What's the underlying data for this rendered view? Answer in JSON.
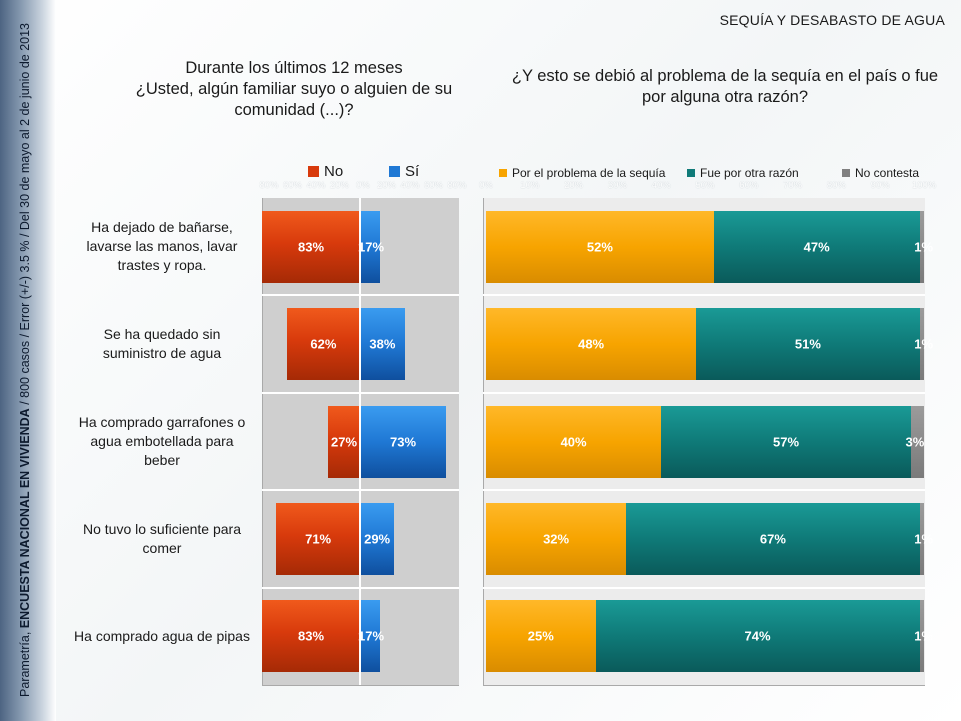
{
  "sidebar": {
    "prefix": "Parametría, ",
    "survey": "ENCUESTA NACIONAL EN VIVIENDA",
    "details": " / 800 casos / Error (+/-) 3.5 % / Del 30 de mayo al 2  de junio de 2013"
  },
  "header": {
    "section": "SEQUÍA Y DESABASTO DE AGUA"
  },
  "questions": {
    "left": [
      "Durante los últimos 12 meses",
      "¿Usted, algún familiar suyo o alguien de su",
      "comunidad (...)?"
    ],
    "right": [
      "¿Y esto se debió al problema de la sequía en el país o fue",
      "por alguna otra razón?"
    ]
  },
  "chart_data": [
    {
      "type": "bar",
      "orientation": "horizontal",
      "diverging": true,
      "categories": [
        "Ha dejado de bañarse, lavarse las manos, lavar trastes y ropa.",
        "Se ha quedado sin suministro de agua",
        "Ha comprado garrafones o agua embotellada para beber",
        "No tuvo lo suficiente para comer",
        "Ha comprado agua de pipas"
      ],
      "category_lines": [
        [
          "Ha dejado de bañarse,",
          "lavarse las manos, lavar",
          "trastes y ropa."
        ],
        [
          "Se ha quedado sin",
          "suministro de agua"
        ],
        [
          "Ha comprado garrafones o",
          "agua embotellada para",
          "beber"
        ],
        [
          "No tuvo lo suficiente para",
          "comer"
        ],
        [
          "Ha comprado agua de pipas"
        ]
      ],
      "series": [
        {
          "name": "No",
          "values": [
            83,
            62,
            27,
            71,
            83
          ],
          "labels": [
            "83%",
            "62%",
            "27%",
            "71%",
            "83%"
          ],
          "color": "#d83a0c"
        },
        {
          "name": "Sí",
          "values": [
            17,
            38,
            73,
            29,
            17
          ],
          "labels": [
            "17%",
            "38%",
            "73%",
            "29%",
            "17%"
          ],
          "color": "#1f78d4"
        }
      ],
      "ticks": [
        "80%",
        "60%",
        "40%",
        "20%",
        "0%",
        "20%",
        "40%",
        "60%",
        "80%"
      ],
      "unit": "%"
    },
    {
      "type": "bar",
      "orientation": "horizontal",
      "stacked": true,
      "series": [
        {
          "name": "Por el problema de la sequía",
          "values": [
            52,
            48,
            40,
            32,
            25
          ],
          "labels": [
            "52%",
            "48%",
            "40%",
            "32%",
            "25%"
          ],
          "color": "#f7a400"
        },
        {
          "name": "Fue por otra razón",
          "values": [
            47,
            51,
            57,
            67,
            74
          ],
          "labels": [
            "47%",
            "51%",
            "57%",
            "67%",
            "74%"
          ],
          "color": "#0f7a78"
        },
        {
          "name": "No contesta",
          "values": [
            1,
            1,
            3,
            1,
            1
          ],
          "labels": [
            "1%",
            "1%",
            "3%",
            "1%",
            "1%"
          ],
          "color": "#808080"
        }
      ],
      "ticks": [
        "0%",
        "10%",
        "20%",
        "30%",
        "40%",
        "50%",
        "60%",
        "70%",
        "80%",
        "90%",
        "100%"
      ],
      "xlim": [
        0,
        100
      ],
      "legend_position": "top",
      "unit": "%"
    }
  ]
}
